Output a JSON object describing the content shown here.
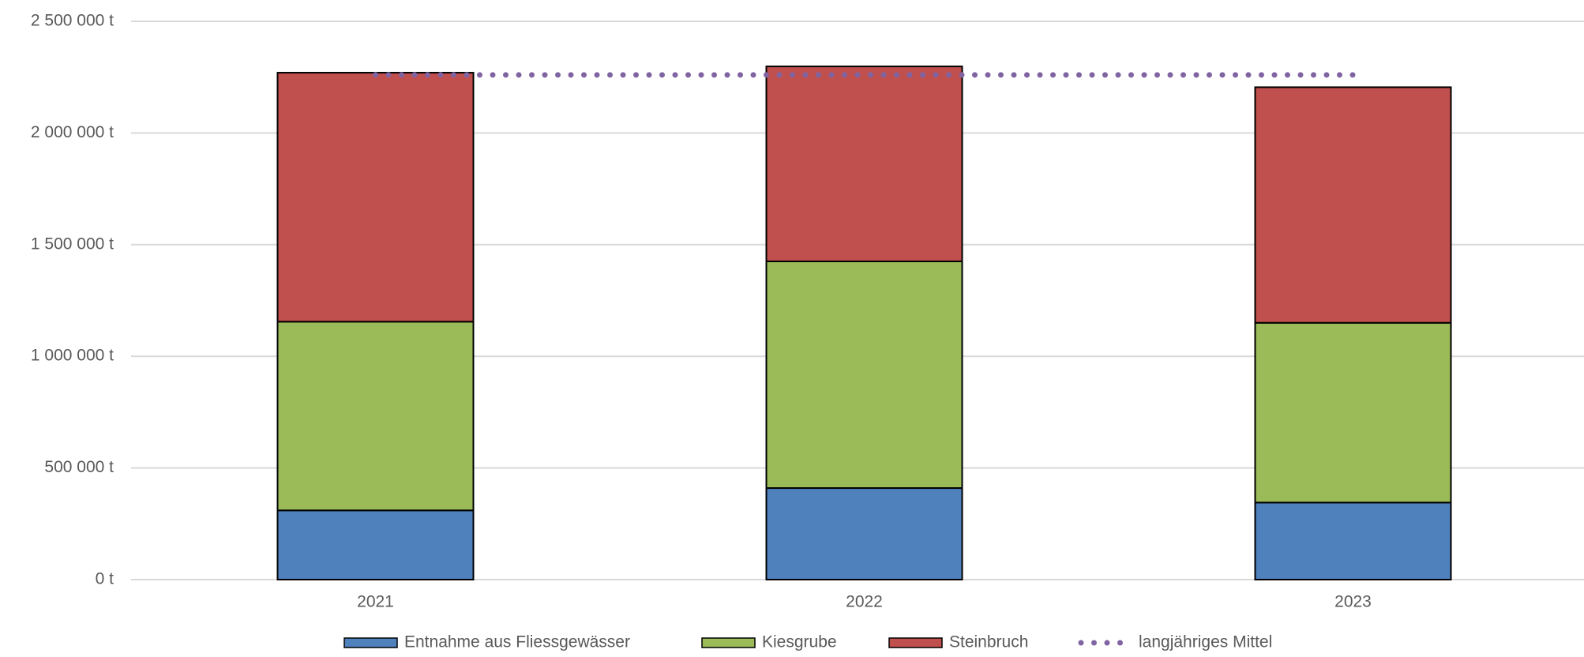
{
  "chart_data": {
    "type": "bar",
    "stacked": true,
    "categories": [
      "2021",
      "2022",
      "2023"
    ],
    "series": [
      {
        "name": "Entnahme aus Fliessgewässer",
        "color": "#4f81bd",
        "values": [
          310000,
          410000,
          345000
        ]
      },
      {
        "name": "Kiesgrube",
        "color": "#9bbb59",
        "values": [
          845000,
          1015000,
          805000
        ]
      },
      {
        "name": "Steinbruch",
        "color": "#c0504d",
        "values": [
          1115000,
          873000,
          1055000
        ]
      },
      {
        "name": "langjähriges Mittel",
        "color": "#8064a2",
        "type": "line",
        "style": "dotted",
        "values": [
          2260000,
          2260000,
          2260000
        ]
      }
    ],
    "ylim": [
      0,
      2500000
    ],
    "yticks": [
      {
        "value": 0,
        "label": "0 t"
      },
      {
        "value": 500000,
        "label": "500 000 t"
      },
      {
        "value": 1000000,
        "label": "1 000 000 t"
      },
      {
        "value": 1500000,
        "label": "1 500 000 t"
      },
      {
        "value": 2000000,
        "label": "2 000 000 t"
      },
      {
        "value": 2500000,
        "label": "2 500 000 t"
      }
    ],
    "grid": true,
    "legend": "bottom"
  }
}
